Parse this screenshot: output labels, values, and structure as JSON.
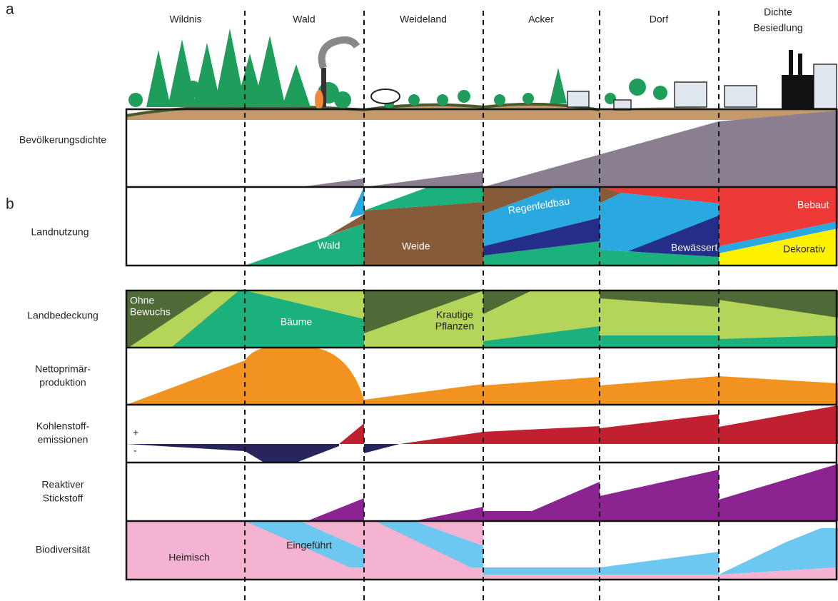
{
  "panel_a": {
    "label": "a",
    "stages": [
      [
        "Wildnis"
      ],
      [
        "Wald"
      ],
      [
        "Weideland"
      ],
      [
        "Acker"
      ],
      [
        "Dorf"
      ],
      [
        "Dichte",
        "Besiedlung"
      ]
    ],
    "rows": [
      [
        "Bevölkerungsdichte"
      ],
      [
        "Landnutzung"
      ]
    ],
    "land_use": {
      "forest": "Wald",
      "pasture": "Weide",
      "rainfed": "Regenfeldbau",
      "irrigated": "Bewässert",
      "built": "Bebaut",
      "decorative": "Dekorativ"
    }
  },
  "panel_b": {
    "label": "b",
    "rows": [
      [
        "Landbedeckung"
      ],
      [
        "Nettoprimär-",
        "produktion"
      ],
      [
        "Kohlenstoff-",
        "emissionen"
      ],
      [
        "Reaktiver",
        "Stickstoff"
      ],
      [
        "Biodiversität"
      ]
    ],
    "land_cover": {
      "bare": [
        "Ohne",
        "Bewuchs"
      ],
      "trees": "Bäume",
      "herbaceous": [
        "Krautige",
        "Pflanzen"
      ]
    },
    "emissions": {
      "positive": "+",
      "negative": "-"
    },
    "biodiversity": {
      "native": "Heimisch",
      "introduced": "Eingeführt"
    }
  }
}
